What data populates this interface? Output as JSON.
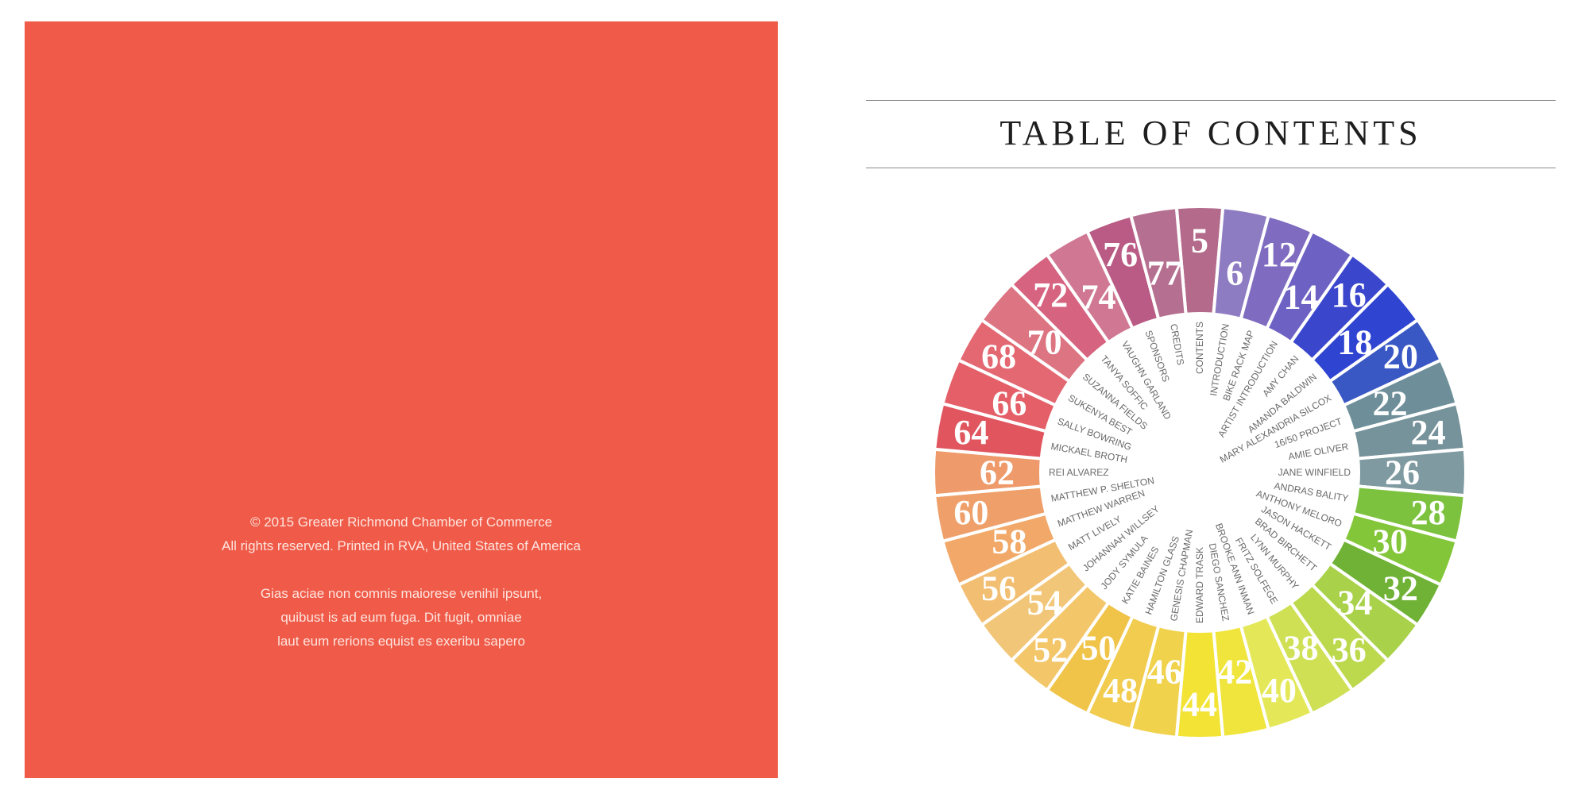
{
  "left_page": {
    "background": "#ef5b48",
    "copyright_lines": [
      "© 2015 Greater Richmond Chamber of Commerce",
      "All rights reserved. Printed in RVA, United States of America"
    ],
    "body_lines": [
      "Gias aciae non comnis maiorese venihil ipsunt,",
      "quibust is ad eum fuga. Dit fugit, omniae",
      "laut eum rerions equist es exeribu sapero"
    ]
  },
  "right_page": {
    "title": "TABLE OF CONTENTS"
  },
  "toc_wheel": {
    "entries": [
      {
        "page": "5",
        "name": "CONTENTS",
        "color": "#b46a8a"
      },
      {
        "page": "6",
        "name": "INTRODUCTION",
        "color": "#8e7cc3"
      },
      {
        "page": "12",
        "name": "BIKE RACK MAP",
        "color": "#7f6cc0"
      },
      {
        "page": "14",
        "name": "ARTIST INTRODUCTION",
        "color": "#6d62c4"
      },
      {
        "page": "16",
        "name": "AMY CHAN",
        "color": "#3a46cc"
      },
      {
        "page": "18",
        "name": "AMANDA BALDWIN",
        "color": "#2f45d2"
      },
      {
        "page": "20",
        "name": "MARY ALEXANDRIA SILCOX",
        "color": "#3a58c4"
      },
      {
        "page": "22",
        "name": "16/50 PROJECT",
        "color": "#6e8f9a"
      },
      {
        "page": "24",
        "name": "AMIE OLIVER",
        "color": "#76929a"
      },
      {
        "page": "26",
        "name": "JANE WINFIELD",
        "color": "#7f9aa0"
      },
      {
        "page": "28",
        "name": "ANDRAS BALITY",
        "color": "#7cc23f"
      },
      {
        "page": "30",
        "name": "ANTHONY MELORO",
        "color": "#84c63a"
      },
      {
        "page": "32",
        "name": "JASON HACKETT",
        "color": "#6fb236"
      },
      {
        "page": "34",
        "name": "BRAD BIRCHETT",
        "color": "#a9d14a"
      },
      {
        "page": "36",
        "name": "LYNN MURPHY",
        "color": "#bcd94e"
      },
      {
        "page": "38",
        "name": "FRITZ SOLFEGE",
        "color": "#cfe055"
      },
      {
        "page": "40",
        "name": "BROOKE ANN INMAN",
        "color": "#e4e858"
      },
      {
        "page": "42",
        "name": "DIEGO SANCHEZ",
        "color": "#f0e53c"
      },
      {
        "page": "44",
        "name": "EDWARD TRASK",
        "color": "#f2e335"
      },
      {
        "page": "46",
        "name": "GENESIS CHAPMAN",
        "color": "#f0d24c"
      },
      {
        "page": "48",
        "name": "HAMILTON GLASS",
        "color": "#f1cc4e"
      },
      {
        "page": "50",
        "name": "KATIE BAINES",
        "color": "#f0c349"
      },
      {
        "page": "52",
        "name": "JODY SYMULA",
        "color": "#f3c66a"
      },
      {
        "page": "54",
        "name": "JOHANNAH WILLSEY",
        "color": "#f2c678"
      },
      {
        "page": "56",
        "name": "MATT LIVELY",
        "color": "#f2be72"
      },
      {
        "page": "58",
        "name": "MATTHEW WARREN",
        "color": "#f1a868"
      },
      {
        "page": "60",
        "name": "MATTHEW P. SHELTON",
        "color": "#efa06a"
      },
      {
        "page": "62",
        "name": "REI ALVAREZ",
        "color": "#ee9a6a"
      },
      {
        "page": "64",
        "name": "MICKAEL BROTH",
        "color": "#e0555e"
      },
      {
        "page": "66",
        "name": "SALLY BOWRING",
        "color": "#e45f68"
      },
      {
        "page": "68",
        "name": "SUKENYA BEST",
        "color": "#e36872"
      },
      {
        "page": "70",
        "name": "SUZANNA FIELDS",
        "color": "#dd7482"
      },
      {
        "page": "72",
        "name": "TANYA SOFFIC",
        "color": "#d6637f"
      },
      {
        "page": "74",
        "name": "VAUGHN GARLAND",
        "color": "#d07893"
      },
      {
        "page": "76",
        "name": "SPONSORS",
        "color": "#b95b84"
      },
      {
        "page": "77",
        "name": "CREDITS",
        "color": "#b56f90"
      }
    ]
  }
}
